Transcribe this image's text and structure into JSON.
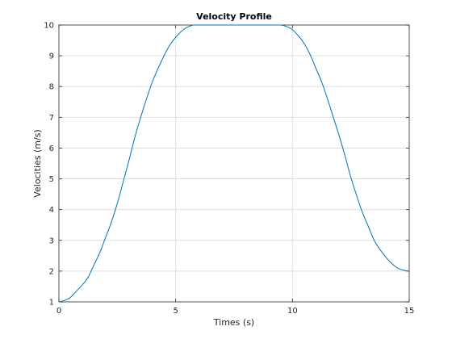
{
  "chart_data": {
    "type": "line",
    "title": "Velocity Profile",
    "xlabel": "Times (s)",
    "ylabel": "Velocities (m/s)",
    "xlim": [
      0,
      15
    ],
    "ylim": [
      1,
      10
    ],
    "xticks": [
      0,
      5,
      10,
      15
    ],
    "yticks": [
      1,
      2,
      3,
      4,
      5,
      6,
      7,
      8,
      9,
      10
    ],
    "xtick_labels": [
      "0",
      "5",
      "10",
      "15"
    ],
    "ytick_labels": [
      "1",
      "2",
      "3",
      "4",
      "5",
      "6",
      "7",
      "8",
      "9",
      "10"
    ],
    "grid": true,
    "line_color": "#0072BD",
    "series": [
      {
        "x": [
          0,
          0.25,
          0.5,
          0.75,
          1.0,
          1.25,
          1.5,
          1.75,
          2.0,
          2.25,
          2.5,
          2.75,
          3.0,
          3.25,
          3.5,
          3.75,
          4.0,
          4.25,
          4.5,
          4.75,
          5.0,
          5.25,
          5.5,
          5.75,
          6.0,
          6.5,
          7.0,
          7.5,
          8.0,
          8.5,
          9.0,
          9.5,
          9.75,
          10.0,
          10.25,
          10.5,
          10.75,
          11.0,
          11.25,
          11.5,
          11.75,
          12.0,
          12.25,
          12.5,
          12.75,
          13.0,
          13.25,
          13.5,
          13.75,
          14.0,
          14.25,
          14.5,
          14.75,
          15.0
        ],
        "y": [
          1.0,
          1.05,
          1.15,
          1.35,
          1.55,
          1.8,
          2.2,
          2.6,
          3.1,
          3.6,
          4.2,
          4.9,
          5.6,
          6.35,
          7.0,
          7.6,
          8.15,
          8.6,
          9.0,
          9.35,
          9.6,
          9.8,
          9.93,
          10.0,
          10.0,
          10.0,
          10.0,
          10.0,
          10.0,
          10.0,
          10.0,
          10.0,
          9.95,
          9.85,
          9.65,
          9.4,
          9.05,
          8.6,
          8.15,
          7.6,
          7.0,
          6.4,
          5.75,
          5.05,
          4.45,
          3.9,
          3.45,
          3.0,
          2.7,
          2.45,
          2.25,
          2.1,
          2.03,
          2.0
        ]
      }
    ]
  }
}
